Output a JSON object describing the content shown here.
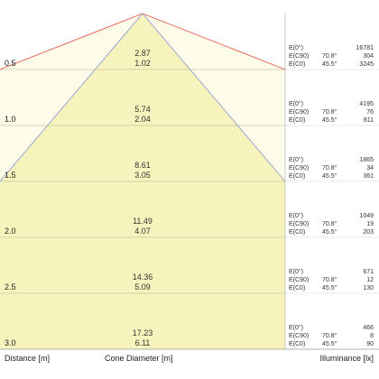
{
  "chart_data": {
    "type": "cone_diagram",
    "title": "",
    "xlabel": "Distance [m]",
    "diameter_label": "Cone Diameter [m]",
    "ylabel": "Illuminance [lx]",
    "half_angles": {
      "c90": "70.8°",
      "c0": "45.5°"
    },
    "row_labels": {
      "e0": "E(0°)",
      "ec90": "E(C90)",
      "ec0": "E(C0)"
    },
    "rows": [
      {
        "distance": "0.5",
        "d_c90": "2.87",
        "d_c0": "1.02",
        "e0": "16781",
        "ec90": "304",
        "ec0": "3245"
      },
      {
        "distance": "1.0",
        "d_c90": "5.74",
        "d_c0": "2.04",
        "e0": "4195",
        "ec90": "76",
        "ec0": "811"
      },
      {
        "distance": "1.5",
        "d_c90": "8.61",
        "d_c0": "3.05",
        "e0": "1865",
        "ec90": "34",
        "ec0": "361"
      },
      {
        "distance": "2.0",
        "d_c90": "11.49",
        "d_c0": "4.07",
        "e0": "1049",
        "ec90": "19",
        "ec0": "203"
      },
      {
        "distance": "2.5",
        "d_c90": "14.36",
        "d_c0": "5.09",
        "e0": "671",
        "ec90": "12",
        "ec0": "130"
      },
      {
        "distance": "3.0",
        "d_c90": "17.23",
        "d_c0": "6.11",
        "e0": "466",
        "ec90": "8",
        "ec0": "90"
      }
    ],
    "colors": {
      "fill_light": "#fdfce8",
      "fill_dark": "#f6f3bc",
      "cone_c90": "#e3574d",
      "cone_c0": "#8f9fd0",
      "row_divider": "#c9c8a8",
      "panel_divider": "#bdbdbd"
    }
  }
}
